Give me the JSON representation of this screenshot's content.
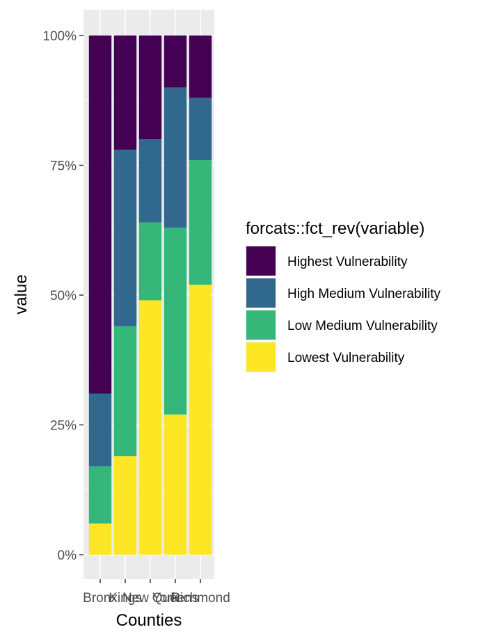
{
  "chart_data": {
    "type": "bar",
    "stacked": true,
    "percent": true,
    "categories": [
      "Bronx",
      "Kings",
      "New York",
      "Queens",
      "Richmond"
    ],
    "xlabel": "Counties",
    "ylabel": "value",
    "ylim": [
      0,
      1
    ],
    "yticks": [
      "0%",
      "25%",
      "50%",
      "75%",
      "100%"
    ],
    "yticks_values": [
      0,
      0.25,
      0.5,
      0.75,
      1.0
    ],
    "grid": true,
    "legend": {
      "title": "forcats::fct_rev(variable)",
      "position": "right",
      "entries": [
        "Highest Vulnerability",
        "High Medium Vulnerability",
        "Low Medium Vulnerability",
        "Lowest Vulnerability"
      ]
    },
    "series": [
      {
        "name": "Lowest Vulnerability",
        "color": "#FDE725",
        "values": [
          0.06,
          0.19,
          0.49,
          0.27,
          0.52
        ]
      },
      {
        "name": "Low Medium Vulnerability",
        "color": "#35B779",
        "values": [
          0.11,
          0.25,
          0.15,
          0.36,
          0.24
        ]
      },
      {
        "name": "High Medium Vulnerability",
        "color": "#31688E",
        "values": [
          0.14,
          0.34,
          0.16,
          0.27,
          0.12
        ]
      },
      {
        "name": "Highest Vulnerability",
        "color": "#440154",
        "values": [
          0.69,
          0.22,
          0.2,
          0.1,
          0.12
        ]
      }
    ],
    "panel_background": "#EBEBEB",
    "grid_color": "#FFFFFF"
  }
}
